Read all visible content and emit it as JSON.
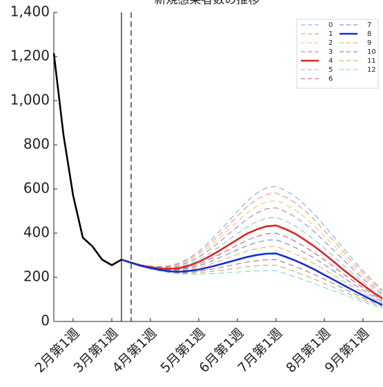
{
  "chart_data": {
    "type": "line",
    "title": "新規感染者数の推移",
    "categories": [
      null,
      null,
      "2月第1週",
      null,
      null,
      null,
      "3月第1週",
      null,
      null,
      null,
      "4月第1週",
      null,
      null,
      null,
      null,
      "5月第1週",
      null,
      null,
      null,
      "6月第1週",
      null,
      null,
      null,
      "7月第1週",
      null,
      null,
      null,
      null,
      "8月第1週",
      null,
      null,
      null,
      "9月第1週",
      null,
      null
    ],
    "ylim": [
      0,
      1400
    ],
    "yticks": [
      0,
      200,
      400,
      600,
      800,
      {
        "value": 1000,
        "label": "1,000"
      },
      {
        "value": 1200,
        "label": "1,200"
      },
      {
        "value": 1400,
        "label": "1,400"
      }
    ],
    "history": {
      "color": "#000000",
      "values": [
        1215,
        845,
        570,
        380,
        340,
        280,
        255,
        280,
        null,
        null,
        null,
        null,
        null,
        null,
        null,
        null,
        null,
        null,
        null,
        null,
        null,
        null,
        null,
        null,
        null,
        null,
        null,
        null,
        null,
        null,
        null,
        null,
        null,
        null,
        null
      ]
    },
    "series": [
      {
        "name": "0",
        "color": "#6fa8dc",
        "dashed": true,
        "values": [
          null,
          null,
          null,
          null,
          null,
          null,
          null,
          280,
          269,
          257,
          251,
          249,
          253,
          265,
          287,
          318,
          357,
          402,
          450,
          499,
          545,
          581,
          605,
          612,
          593,
          565,
          528,
          484,
          434,
          383,
          330,
          279,
          230,
          185,
          144
        ]
      },
      {
        "name": "1",
        "color": "#e8896a",
        "dashed": true,
        "values": [
          null,
          null,
          null,
          null,
          null,
          null,
          null,
          280,
          269,
          257,
          250,
          247,
          251,
          261,
          281,
          310,
          346,
          387,
          432,
          477,
          520,
          553,
          575,
          582,
          563,
          537,
          501,
          460,
          412,
          364,
          314,
          265,
          219,
          176,
          137
        ]
      },
      {
        "name": "2",
        "color": "#f0c060",
        "dashed": true,
        "values": [
          null,
          null,
          null,
          null,
          null,
          null,
          null,
          280,
          269,
          256,
          249,
          245,
          248,
          256,
          275,
          300,
          333,
          371,
          412,
          453,
          492,
          522,
          542,
          548,
          530,
          504,
          471,
          432,
          387,
          342,
          295,
          250,
          206,
          166,
          129
        ]
      },
      {
        "name": "3",
        "color": "#a070b0",
        "dashed": true,
        "values": [
          null,
          null,
          null,
          null,
          null,
          null,
          null,
          280,
          268,
          256,
          248,
          244,
          245,
          252,
          269,
          291,
          321,
          355,
          392,
          429,
          464,
          491,
          510,
          515,
          497,
          473,
          441,
          405,
          363,
          321,
          277,
          235,
          194,
          157,
          122
        ]
      },
      {
        "name": "4",
        "color": "#e02020",
        "dashed": false,
        "values": [
          null,
          null,
          null,
          null,
          null,
          null,
          null,
          280,
          267,
          254,
          246,
          240,
          238,
          242,
          253,
          270,
          292,
          317,
          344,
          371,
          398,
          417,
          431,
          435,
          418,
          397,
          369,
          339,
          305,
          270,
          233,
          199,
          165,
          133,
          104
        ]
      },
      {
        "name": "5",
        "color": "#6cc8c0",
        "dashed": true,
        "values": [
          null,
          null,
          null,
          null,
          null,
          null,
          null,
          280,
          268,
          255,
          247,
          241,
          241,
          246,
          260,
          280,
          305,
          335,
          366,
          398,
          428,
          452,
          468,
          472,
          455,
          432,
          402,
          369,
          332,
          293,
          254,
          216,
          178,
          144,
          112
        ]
      },
      {
        "name": "6",
        "color": "#c05060",
        "dashed": true,
        "values": [
          null,
          null,
          null,
          null,
          null,
          null,
          null,
          280,
          267,
          254,
          244,
          238,
          235,
          237,
          246,
          260,
          279,
          300,
          323,
          346,
          368,
          385,
          397,
          400,
          384,
          363,
          338,
          310,
          279,
          247,
          214,
          183,
          152,
          123,
          96
        ]
      },
      {
        "name": "7",
        "color": "#5080d0",
        "dashed": true,
        "values": [
          null,
          null,
          null,
          null,
          null,
          null,
          null,
          280,
          267,
          253,
          243,
          236,
          233,
          233,
          241,
          252,
          268,
          286,
          305,
          325,
          343,
          358,
          368,
          370,
          354,
          335,
          311,
          286,
          257,
          228,
          198,
          169,
          141,
          115,
          89
        ]
      },
      {
        "name": "8",
        "color": "#1030d0",
        "dashed": false,
        "values": [
          null,
          null,
          null,
          null,
          null,
          null,
          null,
          280,
          266,
          252,
          242,
          233,
          227,
          225,
          229,
          235,
          245,
          256,
          268,
          280,
          292,
          301,
          307,
          308,
          293,
          276,
          256,
          235,
          211,
          188,
          164,
          141,
          118,
          96,
          75
        ]
      },
      {
        "name": "9",
        "color": "#f0a050",
        "dashed": true,
        "values": [
          null,
          null,
          null,
          null,
          null,
          null,
          null,
          280,
          266,
          253,
          243,
          234,
          230,
          229,
          235,
          244,
          257,
          271,
          287,
          303,
          319,
          330,
          338,
          340,
          324,
          306,
          284,
          261,
          235,
          209,
          181,
          156,
          130,
          106,
          83
        ]
      },
      {
        "name": "10",
        "color": "#9a60a8",
        "dashed": true,
        "values": [
          null,
          null,
          null,
          null,
          null,
          null,
          null,
          280,
          266,
          251,
          241,
          231,
          225,
          221,
          223,
          228,
          234,
          242,
          251,
          260,
          269,
          275,
          279,
          280,
          265,
          249,
          231,
          212,
          191,
          170,
          149,
          128,
          107,
          88,
          69
        ]
      },
      {
        "name": "11",
        "color": "#b0b040",
        "dashed": true,
        "values": [
          null,
          null,
          null,
          null,
          null,
          null,
          null,
          280,
          266,
          251,
          240,
          230,
          223,
          218,
          219,
          221,
          225,
          230,
          236,
          242,
          248,
          252,
          255,
          255,
          240,
          225,
          208,
          191,
          172,
          154,
          135,
          117,
          98,
          81,
          63
        ]
      },
      {
        "name": "12",
        "color": "#70d0e0",
        "dashed": true,
        "values": [
          null,
          null,
          null,
          null,
          null,
          null,
          null,
          280,
          265,
          251,
          239,
          229,
          221,
          215,
          214,
          214,
          216,
          218,
          221,
          224,
          227,
          229,
          230,
          230,
          216,
          202,
          186,
          171,
          154,
          138,
          121,
          106,
          89,
          74,
          58
        ]
      }
    ]
  }
}
